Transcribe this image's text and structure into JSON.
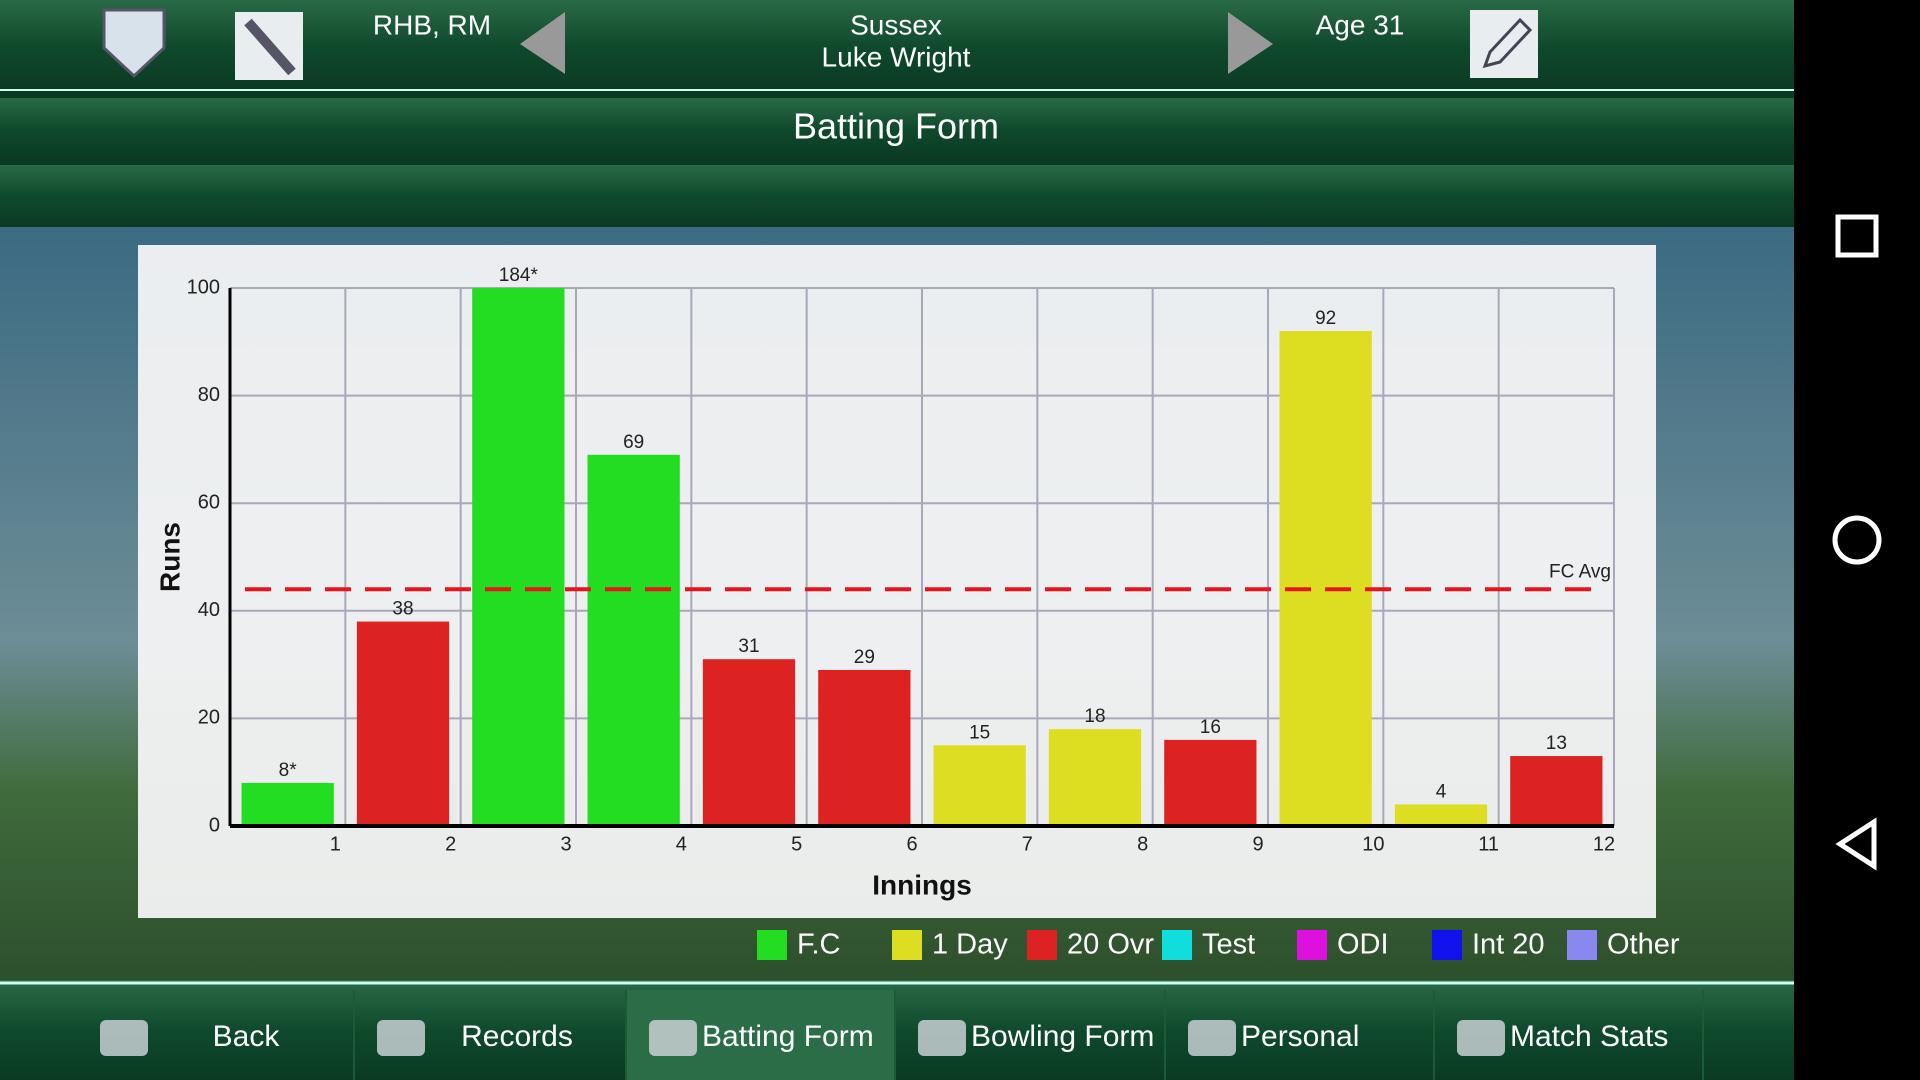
{
  "header": {
    "role": "RHB, RM",
    "team": "Sussex",
    "player": "Luke Wright",
    "age": "Age 31"
  },
  "title": "Batting Form",
  "chart_data": {
    "type": "bar",
    "xlabel": "Innings",
    "ylabel": "Runs",
    "categories": [
      "1",
      "2",
      "3",
      "4",
      "5",
      "6",
      "7",
      "8",
      "9",
      "10",
      "11",
      "12"
    ],
    "values": [
      8,
      38,
      184,
      69,
      31,
      29,
      15,
      18,
      16,
      92,
      4,
      13
    ],
    "value_labels": [
      "8*",
      "38",
      "184*",
      "69",
      "31",
      "29",
      "15",
      "18",
      "16",
      "92",
      "4",
      "13"
    ],
    "colors": [
      "#22dd22",
      "#dd2222",
      "#22dd22",
      "#22dd22",
      "#dd2222",
      "#dd2222",
      "#dddd22",
      "#dddd22",
      "#dd2222",
      "#dddd22",
      "#dddd22",
      "#dd2222"
    ],
    "ylim": [
      0,
      100
    ],
    "yticks": [
      0,
      20,
      40,
      60,
      80,
      100
    ],
    "grid": true,
    "reference_line": {
      "value": 44,
      "label": "FC Avg",
      "color": "#e8141c"
    },
    "legend": [
      {
        "name": "F.C",
        "color": "#22dd22"
      },
      {
        "name": "1 Day",
        "color": "#dddd22"
      },
      {
        "name": "20 Ovr",
        "color": "#dd2222"
      },
      {
        "name": "Test",
        "color": "#11dddd"
      },
      {
        "name": "ODI",
        "color": "#dd11dd"
      },
      {
        "name": "Int 20",
        "color": "#1111ee"
      },
      {
        "name": "Other",
        "color": "#8888ee"
      }
    ]
  },
  "nav": [
    "Back",
    "Records",
    "Batting Form",
    "Bowling Form",
    "Personal",
    "Match Stats"
  ]
}
